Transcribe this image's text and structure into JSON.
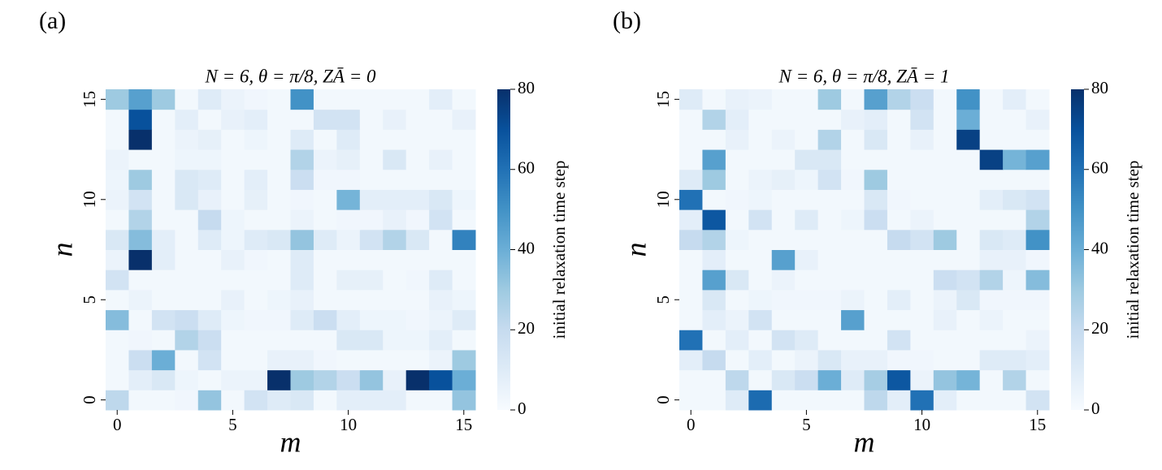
{
  "chart_data": [
    {
      "type": "heatmap",
      "panel_label": "(a)",
      "title": "N = 6,  θ = π/8,  ZĀ = 0",
      "xlabel": "m",
      "ylabel": "n",
      "colorbar_label": "initial relaxation time step",
      "colormap": "Blues",
      "x": [
        0,
        1,
        2,
        3,
        4,
        5,
        6,
        7,
        8,
        9,
        10,
        11,
        12,
        13,
        14,
        15
      ],
      "y": [
        0,
        1,
        2,
        3,
        4,
        5,
        6,
        7,
        8,
        9,
        10,
        11,
        12,
        13,
        14,
        15
      ],
      "xlim": [
        -0.5,
        15.5
      ],
      "ylim": [
        -0.5,
        15.5
      ],
      "xticks": [
        0,
        5,
        10,
        15
      ],
      "yticks": [
        0,
        5,
        10,
        15
      ],
      "zlim": [
        0,
        80
      ],
      "zticks": [
        0,
        20,
        40,
        60,
        80
      ],
      "values": [
        [
          22,
          2,
          2,
          3,
          32,
          2,
          15,
          10,
          12,
          2,
          8,
          8,
          8,
          2,
          2,
          32
        ],
        [
          2,
          8,
          12,
          4,
          2,
          5,
          5,
          80,
          30,
          25,
          18,
          32,
          6,
          80,
          70,
          40
        ],
        [
          2,
          18,
          40,
          2,
          15,
          2,
          2,
          6,
          6,
          3,
          2,
          2,
          2,
          2,
          5,
          30
        ],
        [
          2,
          3,
          2,
          25,
          18,
          2,
          2,
          2,
          2,
          2,
          12,
          12,
          4,
          4,
          8,
          2
        ],
        [
          35,
          2,
          15,
          18,
          10,
          4,
          3,
          3,
          10,
          18,
          8,
          4,
          4,
          3,
          5,
          10
        ],
        [
          2,
          5,
          2,
          2,
          2,
          6,
          2,
          4,
          6,
          2,
          2,
          2,
          2,
          2,
          6,
          4
        ],
        [
          15,
          2,
          2,
          2,
          2,
          2,
          2,
          2,
          10,
          2,
          7,
          7,
          2,
          3,
          10,
          2
        ],
        [
          5,
          80,
          8,
          2,
          2,
          6,
          3,
          2,
          10,
          2,
          2,
          2,
          2,
          2,
          2,
          2
        ],
        [
          12,
          35,
          8,
          2,
          10,
          4,
          10,
          12,
          32,
          10,
          5,
          15,
          25,
          12,
          2,
          55
        ],
        [
          2,
          25,
          2,
          2,
          20,
          4,
          2,
          2,
          5,
          2,
          3,
          3,
          6,
          3,
          15,
          2
        ],
        [
          5,
          15,
          2,
          12,
          6,
          2,
          7,
          2,
          3,
          2,
          38,
          8,
          8,
          8,
          12,
          4
        ],
        [
          4,
          30,
          2,
          12,
          10,
          2,
          8,
          2,
          18,
          3,
          3,
          2,
          2,
          2,
          2,
          2
        ],
        [
          5,
          2,
          2,
          4,
          4,
          2,
          2,
          2,
          25,
          5,
          7,
          2,
          12,
          2,
          6,
          2
        ],
        [
          2,
          80,
          2,
          5,
          7,
          2,
          4,
          2,
          10,
          2,
          10,
          2,
          2,
          2,
          2,
          2
        ],
        [
          2,
          70,
          2,
          8,
          2,
          6,
          8,
          2,
          2,
          15,
          15,
          2,
          6,
          2,
          2,
          6
        ],
        [
          30,
          45,
          30,
          2,
          10,
          5,
          3,
          2,
          50,
          2,
          2,
          2,
          2,
          2,
          8,
          2
        ]
      ]
    },
    {
      "type": "heatmap",
      "panel_label": "(b)",
      "title": "N = 6,  θ = π/8,  ZĀ = 1",
      "xlabel": "m",
      "ylabel": "n",
      "colorbar_label": "initial relaxation time step",
      "colormap": "Blues",
      "x": [
        0,
        1,
        2,
        3,
        4,
        5,
        6,
        7,
        8,
        9,
        10,
        11,
        12,
        13,
        14,
        15
      ],
      "y": [
        0,
        1,
        2,
        3,
        4,
        5,
        6,
        7,
        8,
        9,
        10,
        11,
        12,
        13,
        14,
        15
      ],
      "xlim": [
        -0.5,
        15.5
      ],
      "ylim": [
        -0.5,
        15.5
      ],
      "xticks": [
        0,
        5,
        10,
        15
      ],
      "yticks": [
        0,
        5,
        10,
        15
      ],
      "zlim": [
        0,
        80
      ],
      "zticks": [
        0,
        20,
        40,
        60,
        80
      ],
      "values": [
        [
          2,
          2,
          10,
          62,
          2,
          2,
          2,
          2,
          22,
          8,
          60,
          8,
          2,
          2,
          2,
          15
        ],
        [
          2,
          2,
          22,
          2,
          12,
          18,
          40,
          10,
          28,
          68,
          5,
          32,
          38,
          2,
          25,
          2
        ],
        [
          8,
          20,
          2,
          8,
          2,
          5,
          12,
          6,
          6,
          3,
          3,
          2,
          2,
          10,
          10,
          8
        ],
        [
          60,
          2,
          8,
          2,
          15,
          10,
          2,
          2,
          2,
          15,
          2,
          2,
          2,
          2,
          2,
          5
        ],
        [
          2,
          8,
          5,
          15,
          2,
          2,
          2,
          45,
          2,
          2,
          2,
          6,
          2,
          5,
          2,
          2
        ],
        [
          2,
          12,
          2,
          4,
          3,
          3,
          3,
          5,
          2,
          8,
          2,
          5,
          12,
          3,
          3,
          3
        ],
        [
          2,
          45,
          12,
          2,
          5,
          2,
          2,
          2,
          2,
          2,
          2,
          18,
          15,
          25,
          4,
          35
        ],
        [
          2,
          8,
          2,
          2,
          45,
          6,
          2,
          2,
          2,
          2,
          2,
          2,
          2,
          6,
          6,
          3
        ],
        [
          20,
          25,
          4,
          2,
          2,
          2,
          2,
          2,
          2,
          20,
          15,
          30,
          2,
          12,
          10,
          50
        ],
        [
          8,
          68,
          2,
          15,
          2,
          10,
          2,
          4,
          18,
          2,
          5,
          2,
          2,
          2,
          2,
          25
        ],
        [
          60,
          2,
          3,
          4,
          2,
          2,
          2,
          2,
          12,
          3,
          2,
          2,
          2,
          8,
          12,
          15
        ],
        [
          10,
          30,
          2,
          5,
          7,
          4,
          15,
          3,
          30,
          2,
          2,
          2,
          2,
          2,
          2,
          2
        ],
        [
          2,
          45,
          2,
          2,
          2,
          12,
          12,
          2,
          2,
          2,
          2,
          2,
          2,
          75,
          38,
          45
        ],
        [
          2,
          2,
          6,
          2,
          5,
          2,
          25,
          2,
          12,
          2,
          6,
          2,
          75,
          2,
          2,
          2
        ],
        [
          2,
          25,
          8,
          2,
          2,
          2,
          2,
          6,
          8,
          2,
          15,
          2,
          40,
          2,
          2,
          6
        ],
        [
          10,
          2,
          6,
          5,
          2,
          2,
          30,
          2,
          45,
          25,
          18,
          2,
          50,
          2,
          8,
          2
        ]
      ]
    }
  ]
}
